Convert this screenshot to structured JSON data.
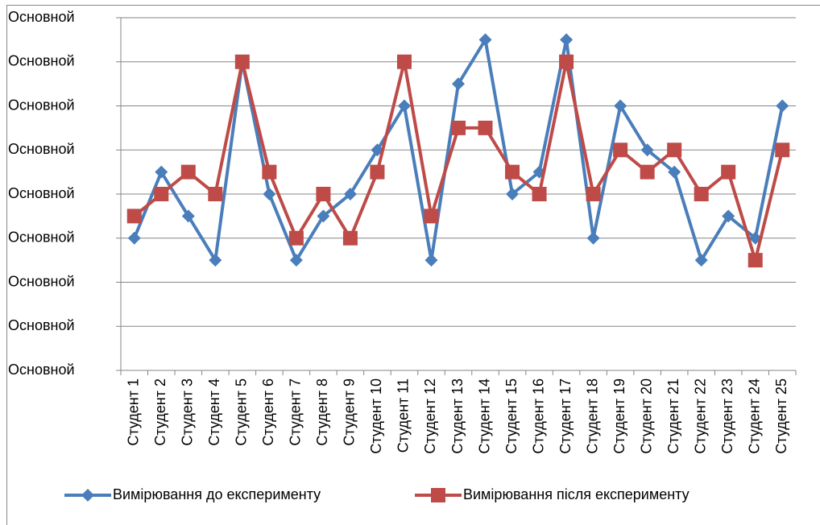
{
  "chart_data": {
    "type": "line",
    "categories": [
      "Студент 1",
      "Студент 2",
      "Студент 3",
      "Студент 4",
      "Студент 5",
      "Студент 6",
      "Студент 7",
      "Студент 8",
      "Студент 9",
      "Студент 10",
      "Студент 11",
      "Студент 12",
      "Студент 13",
      "Студент 14",
      "Студент 15",
      "Студент 16",
      "Студент 17",
      "Студент 18",
      "Студент 19",
      "Студент 20",
      "Студент 21",
      "Студент 22",
      "Студент 23",
      "Студент 24",
      "Студент 25"
    ],
    "series": [
      {
        "name": "Вимірювання до експерименту",
        "color": "#4a7ebb",
        "marker": "diamond",
        "values": [
          3,
          4.5,
          3.5,
          2.5,
          7,
          4,
          2.5,
          3.5,
          4,
          5,
          6,
          2.5,
          6.5,
          7.5,
          4,
          4.5,
          7.5,
          3,
          6,
          5,
          4.5,
          2.5,
          3.5,
          3,
          6
        ]
      },
      {
        "name": "Вимірювання після експерименту",
        "color": "#be4b48",
        "marker": "square",
        "values": [
          3.5,
          4,
          4.5,
          4,
          7,
          4.5,
          3,
          4,
          3,
          4.5,
          7,
          3.5,
          5.5,
          5.5,
          4.5,
          4,
          7,
          4,
          5,
          4.5,
          5,
          4,
          4.5,
          2.5,
          5
        ]
      }
    ],
    "ylim": [
      0,
      8
    ],
    "yticks": [
      {
        "value": 0,
        "label": "Основной"
      },
      {
        "value": 1,
        "label": "Основной"
      },
      {
        "value": 2,
        "label": "Основной"
      },
      {
        "value": 3,
        "label": "Основной"
      },
      {
        "value": 4,
        "label": "Основной"
      },
      {
        "value": 5,
        "label": "Основной"
      },
      {
        "value": 6,
        "label": "Основной"
      },
      {
        "value": 7,
        "label": "Основной"
      },
      {
        "value": 8,
        "label": "Основной"
      }
    ],
    "grid": true,
    "legend": "bottom"
  }
}
